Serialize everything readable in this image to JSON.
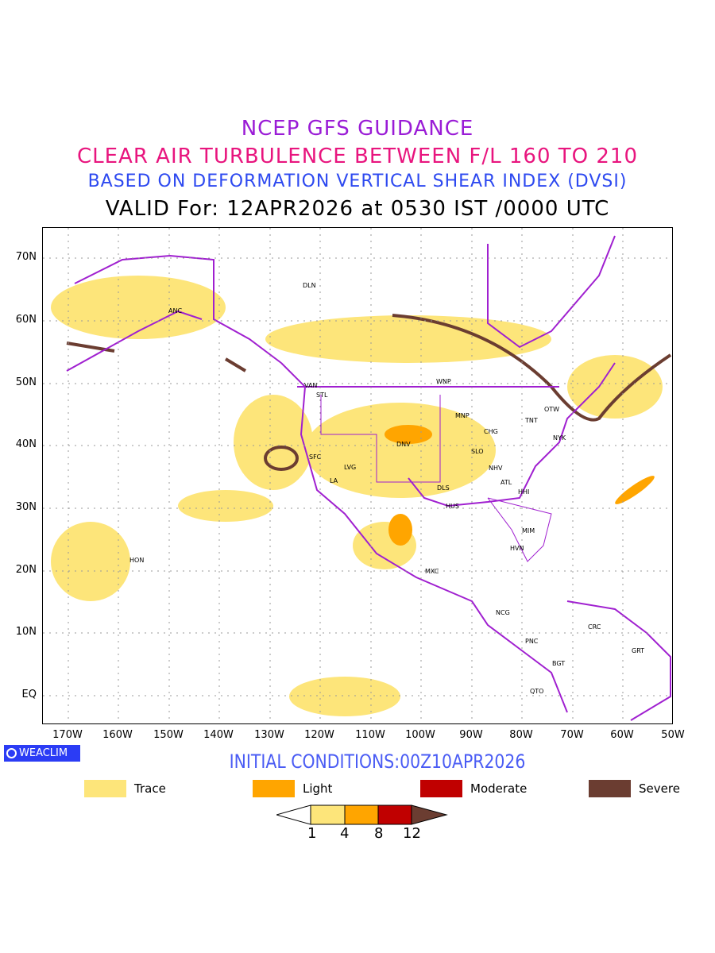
{
  "titles": {
    "line1": "NCEP GFS GUIDANCE",
    "line2": "CLEAR AIR TURBULENCE BETWEEN F/L 160 TO 210",
    "line3": "BASED ON DEFORMATION VERTICAL SHEAR INDEX (DVSI)",
    "line4": "VALID For: 12APR2026 at 0530 IST /0000 UTC"
  },
  "axes": {
    "lat_labels": [
      "70N",
      "60N",
      "50N",
      "40N",
      "30N",
      "20N",
      "10N",
      "EQ"
    ],
    "lon_labels": [
      "170W",
      "160W",
      "150W",
      "140W",
      "130W",
      "120W",
      "110W",
      "100W",
      "90W",
      "80W",
      "70W",
      "60W",
      "50W"
    ]
  },
  "cities": [
    "DLN",
    "ANC",
    "VAN",
    "STL",
    "WNP",
    "MNP",
    "TNT",
    "OTW",
    "CHG",
    "NYK",
    "DNV",
    "SFC",
    "LVG",
    "LA",
    "SLO",
    "NHV",
    "ATL",
    "HHI",
    "DLS",
    "HUS",
    "MIM",
    "HVN",
    "HON",
    "MXC",
    "NCG",
    "CRC",
    "PNC",
    "GRT",
    "BGT",
    "QTO"
  ],
  "logo": "WEACLIM",
  "initial_conditions": "INITIAL CONDITIONS:00Z10APR2026",
  "legend": [
    {
      "label": "Trace",
      "color": "#fde57a"
    },
    {
      "label": "Light",
      "color": "#ffa500"
    },
    {
      "label": "Moderate",
      "color": "#c00000"
    },
    {
      "label": "Severe",
      "color": "#6b3d31"
    }
  ],
  "colorbar": {
    "ticks": [
      "1",
      "4",
      "8",
      "12"
    ]
  },
  "colors": {
    "boundaries": "#a020d0"
  }
}
